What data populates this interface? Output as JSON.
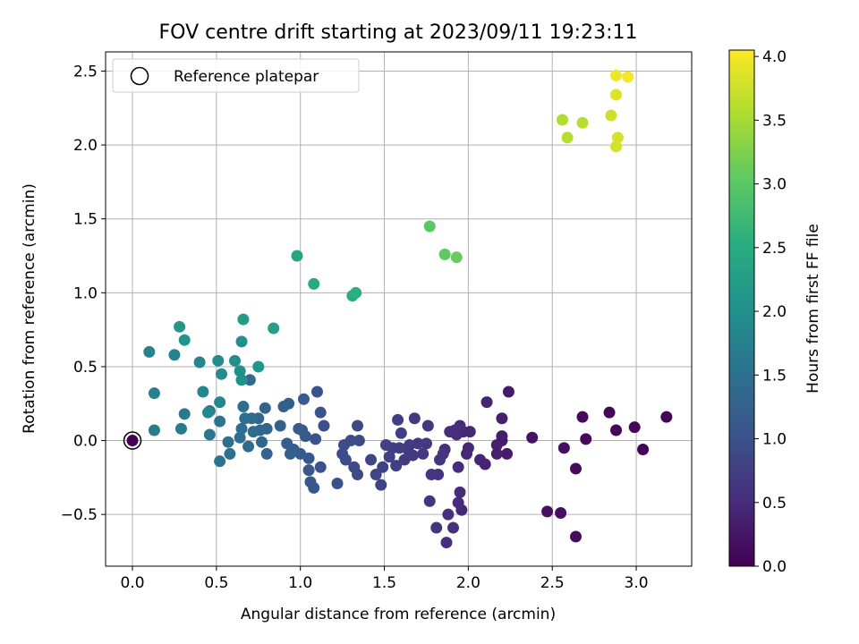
{
  "chart_data": {
    "type": "scatter",
    "title": "FOV centre drift starting at 2023/09/11 19:23:11",
    "xlabel": "Angular distance from reference (arcmin)",
    "ylabel": "Rotation from reference (arcmin)",
    "xlim": [
      -0.16,
      3.33
    ],
    "ylim": [
      -0.85,
      2.63
    ],
    "xticks": [
      0.0,
      0.5,
      1.0,
      1.5,
      2.0,
      2.5,
      3.0
    ],
    "xtick_labels": [
      "0.0",
      "0.5",
      "1.0",
      "1.5",
      "2.0",
      "2.5",
      "3.0"
    ],
    "yticks": [
      -0.5,
      0.0,
      0.5,
      1.0,
      1.5,
      2.0,
      2.5
    ],
    "ytick_labels": [
      "−0.5",
      "0.0",
      "0.5",
      "1.0",
      "1.5",
      "2.0",
      "2.5"
    ],
    "grid": true,
    "legend": {
      "position": "top-left",
      "label": "Reference platepar"
    },
    "reference_point": {
      "x": 0.0,
      "y": 0.0
    },
    "colorbar": {
      "label": "Hours from first FF file",
      "colormap": "viridis",
      "range": [
        0.0,
        4.05
      ],
      "ticks": [
        0.0,
        0.5,
        1.0,
        1.5,
        2.0,
        2.5,
        3.0,
        3.5,
        4.0
      ],
      "tick_labels": [
        "0.0",
        "0.5",
        "1.0",
        "1.5",
        "2.0",
        "2.5",
        "3.0",
        "3.5",
        "4.0"
      ],
      "position": "right"
    },
    "points": [
      {
        "x": 0.0,
        "y": 0.0,
        "c": 0.0
      },
      {
        "x": 3.18,
        "y": 0.16,
        "c": 0.05
      },
      {
        "x": 3.04,
        "y": -0.06,
        "c": 0.05
      },
      {
        "x": 2.99,
        "y": 0.09,
        "c": 0.07
      },
      {
        "x": 2.88,
        "y": 0.07,
        "c": 0.08
      },
      {
        "x": 2.84,
        "y": 0.19,
        "c": 0.08
      },
      {
        "x": 2.7,
        "y": 0.01,
        "c": 0.1
      },
      {
        "x": 2.68,
        "y": 0.16,
        "c": 0.1
      },
      {
        "x": 2.64,
        "y": -0.19,
        "c": 0.12
      },
      {
        "x": 2.64,
        "y": -0.65,
        "c": 0.12
      },
      {
        "x": 2.57,
        "y": -0.05,
        "c": 0.15
      },
      {
        "x": 2.55,
        "y": -0.49,
        "c": 0.15
      },
      {
        "x": 2.47,
        "y": -0.48,
        "c": 0.17
      },
      {
        "x": 2.38,
        "y": 0.02,
        "c": 0.2
      },
      {
        "x": 2.24,
        "y": 0.33,
        "c": 0.3
      },
      {
        "x": 2.23,
        "y": -0.09,
        "c": 0.3
      },
      {
        "x": 2.2,
        "y": 0.03,
        "c": 0.32
      },
      {
        "x": 2.2,
        "y": 0.0,
        "c": 0.32
      },
      {
        "x": 2.2,
        "y": 0.15,
        "c": 0.35
      },
      {
        "x": 2.17,
        "y": -0.09,
        "c": 0.35
      },
      {
        "x": 2.17,
        "y": -0.03,
        "c": 0.35
      },
      {
        "x": 2.11,
        "y": 0.26,
        "c": 0.4
      },
      {
        "x": 2.1,
        "y": -0.16,
        "c": 0.4
      },
      {
        "x": 2.07,
        "y": -0.13,
        "c": 0.4
      },
      {
        "x": 2.01,
        "y": 0.06,
        "c": 0.45
      },
      {
        "x": 2.0,
        "y": -0.05,
        "c": 0.45
      },
      {
        "x": 1.99,
        "y": -0.09,
        "c": 0.45
      },
      {
        "x": 1.97,
        "y": 0.06,
        "c": 0.45
      },
      {
        "x": 1.96,
        "y": -0.47,
        "c": 0.45
      },
      {
        "x": 1.95,
        "y": 0.1,
        "c": 0.5
      },
      {
        "x": 1.95,
        "y": -0.35,
        "c": 0.5
      },
      {
        "x": 1.94,
        "y": -0.42,
        "c": 0.5
      },
      {
        "x": 1.94,
        "y": -0.18,
        "c": 0.5
      },
      {
        "x": 1.93,
        "y": 0.04,
        "c": 0.5
      },
      {
        "x": 1.92,
        "y": 0.07,
        "c": 0.55
      },
      {
        "x": 1.91,
        "y": -0.59,
        "c": 0.55
      },
      {
        "x": 1.89,
        "y": 0.06,
        "c": 0.55
      },
      {
        "x": 1.88,
        "y": -0.5,
        "c": 0.55
      },
      {
        "x": 1.87,
        "y": -0.69,
        "c": 0.55
      },
      {
        "x": 1.86,
        "y": -0.06,
        "c": 0.55
      },
      {
        "x": 1.85,
        "y": -0.09,
        "c": 0.6
      },
      {
        "x": 1.83,
        "y": -0.13,
        "c": 0.6
      },
      {
        "x": 1.82,
        "y": -0.23,
        "c": 0.6
      },
      {
        "x": 1.81,
        "y": -0.59,
        "c": 0.6
      },
      {
        "x": 1.78,
        "y": -0.23,
        "c": 0.6
      },
      {
        "x": 1.77,
        "y": -0.41,
        "c": 0.6
      },
      {
        "x": 1.76,
        "y": 0.1,
        "c": 0.65
      },
      {
        "x": 1.75,
        "y": -0.02,
        "c": 0.65
      },
      {
        "x": 1.73,
        "y": -0.09,
        "c": 0.65
      },
      {
        "x": 1.7,
        "y": -0.02,
        "c": 0.65
      },
      {
        "x": 1.68,
        "y": 0.15,
        "c": 0.65
      },
      {
        "x": 1.67,
        "y": -0.1,
        "c": 0.7
      },
      {
        "x": 1.65,
        "y": -0.03,
        "c": 0.7
      },
      {
        "x": 1.64,
        "y": -0.06,
        "c": 0.7
      },
      {
        "x": 1.62,
        "y": -0.13,
        "c": 0.7
      },
      {
        "x": 1.6,
        "y": 0.05,
        "c": 0.75
      },
      {
        "x": 1.59,
        "y": -0.05,
        "c": 0.75
      },
      {
        "x": 1.58,
        "y": 0.14,
        "c": 0.75
      },
      {
        "x": 1.57,
        "y": -0.17,
        "c": 0.75
      },
      {
        "x": 1.55,
        "y": -0.05,
        "c": 0.75
      },
      {
        "x": 1.53,
        "y": -0.11,
        "c": 0.8
      },
      {
        "x": 1.51,
        "y": -0.03,
        "c": 0.8
      },
      {
        "x": 1.49,
        "y": -0.18,
        "c": 0.8
      },
      {
        "x": 1.48,
        "y": -0.3,
        "c": 0.8
      },
      {
        "x": 1.45,
        "y": -0.23,
        "c": 0.85
      },
      {
        "x": 1.42,
        "y": -0.13,
        "c": 0.85
      },
      {
        "x": 1.35,
        "y": 0.0,
        "c": 0.9
      },
      {
        "x": 1.34,
        "y": -0.23,
        "c": 0.9
      },
      {
        "x": 1.34,
        "y": 0.1,
        "c": 0.9
      },
      {
        "x": 1.32,
        "y": -0.18,
        "c": 0.9
      },
      {
        "x": 1.3,
        "y": 0.0,
        "c": 0.95
      },
      {
        "x": 1.27,
        "y": -0.13,
        "c": 0.95
      },
      {
        "x": 1.26,
        "y": -0.03,
        "c": 0.95
      },
      {
        "x": 1.25,
        "y": -0.09,
        "c": 0.95
      },
      {
        "x": 1.22,
        "y": -0.29,
        "c": 1.0
      },
      {
        "x": 1.14,
        "y": 0.1,
        "c": 1.0
      },
      {
        "x": 1.12,
        "y": 0.19,
        "c": 1.05
      },
      {
        "x": 1.12,
        "y": -0.18,
        "c": 1.05
      },
      {
        "x": 1.1,
        "y": 0.33,
        "c": 1.05
      },
      {
        "x": 1.09,
        "y": 0.01,
        "c": 1.05
      },
      {
        "x": 1.08,
        "y": -0.32,
        "c": 1.1
      },
      {
        "x": 1.06,
        "y": -0.28,
        "c": 1.1
      },
      {
        "x": 1.05,
        "y": -0.2,
        "c": 1.1
      },
      {
        "x": 1.05,
        "y": -0.12,
        "c": 1.1
      },
      {
        "x": 1.03,
        "y": 0.03,
        "c": 1.1
      },
      {
        "x": 1.02,
        "y": 0.28,
        "c": 1.15
      },
      {
        "x": 1.01,
        "y": 0.07,
        "c": 1.15
      },
      {
        "x": 1.0,
        "y": -0.09,
        "c": 1.15
      },
      {
        "x": 0.99,
        "y": 0.08,
        "c": 1.15
      },
      {
        "x": 0.96,
        "y": -0.06,
        "c": 1.2
      },
      {
        "x": 0.94,
        "y": -0.09,
        "c": 1.2
      },
      {
        "x": 0.93,
        "y": 0.25,
        "c": 1.2
      },
      {
        "x": 0.92,
        "y": -0.02,
        "c": 1.2
      },
      {
        "x": 0.9,
        "y": 0.23,
        "c": 1.25
      },
      {
        "x": 0.88,
        "y": 0.1,
        "c": 1.25
      },
      {
        "x": 0.8,
        "y": 0.08,
        "c": 1.3
      },
      {
        "x": 0.8,
        "y": -0.09,
        "c": 1.3
      },
      {
        "x": 0.79,
        "y": 0.22,
        "c": 1.3
      },
      {
        "x": 0.77,
        "y": -0.01,
        "c": 1.35
      },
      {
        "x": 0.76,
        "y": 0.07,
        "c": 1.35
      },
      {
        "x": 0.75,
        "y": 0.15,
        "c": 1.35
      },
      {
        "x": 0.72,
        "y": 0.06,
        "c": 1.4
      },
      {
        "x": 0.71,
        "y": 0.15,
        "c": 1.4
      },
      {
        "x": 0.7,
        "y": 0.41,
        "c": 1.4
      },
      {
        "x": 0.69,
        "y": -0.04,
        "c": 1.4
      },
      {
        "x": 0.67,
        "y": 0.15,
        "c": 1.45
      },
      {
        "x": 0.66,
        "y": 0.23,
        "c": 1.45
      },
      {
        "x": 0.65,
        "y": 0.08,
        "c": 1.45
      },
      {
        "x": 0.64,
        "y": 0.02,
        "c": 1.45
      },
      {
        "x": 0.57,
        "y": -0.01,
        "c": 1.5
      },
      {
        "x": 0.58,
        "y": -0.09,
        "c": 1.5
      },
      {
        "x": 0.52,
        "y": 0.13,
        "c": 1.55
      },
      {
        "x": 0.52,
        "y": -0.14,
        "c": 1.55
      },
      {
        "x": 0.46,
        "y": 0.2,
        "c": 1.6
      },
      {
        "x": 0.46,
        "y": 0.04,
        "c": 1.6
      },
      {
        "x": 0.31,
        "y": 0.18,
        "c": 1.65
      },
      {
        "x": 0.29,
        "y": 0.08,
        "c": 1.65
      },
      {
        "x": 0.13,
        "y": 0.07,
        "c": 1.7
      },
      {
        "x": 0.13,
        "y": 0.32,
        "c": 1.75
      },
      {
        "x": 0.1,
        "y": 0.6,
        "c": 1.8
      },
      {
        "x": 0.25,
        "y": 0.58,
        "c": 1.8
      },
      {
        "x": 0.4,
        "y": 0.53,
        "c": 1.85
      },
      {
        "x": 0.42,
        "y": 0.33,
        "c": 1.85
      },
      {
        "x": 0.45,
        "y": 0.19,
        "c": 1.9
      },
      {
        "x": 0.52,
        "y": 0.26,
        "c": 1.9
      },
      {
        "x": 0.51,
        "y": 0.54,
        "c": 1.95
      },
      {
        "x": 0.53,
        "y": 0.45,
        "c": 1.95
      },
      {
        "x": 0.61,
        "y": 0.54,
        "c": 2.0
      },
      {
        "x": 0.64,
        "y": 0.47,
        "c": 2.0
      },
      {
        "x": 0.65,
        "y": 0.41,
        "c": 2.05
      },
      {
        "x": 0.65,
        "y": 0.67,
        "c": 2.05
      },
      {
        "x": 0.75,
        "y": 0.5,
        "c": 2.1
      },
      {
        "x": 0.31,
        "y": 0.68,
        "c": 2.1
      },
      {
        "x": 0.28,
        "y": 0.77,
        "c": 2.15
      },
      {
        "x": 0.66,
        "y": 0.82,
        "c": 2.2
      },
      {
        "x": 0.84,
        "y": 0.76,
        "c": 2.25
      },
      {
        "x": 0.98,
        "y": 1.25,
        "c": 2.4
      },
      {
        "x": 1.08,
        "y": 1.06,
        "c": 2.45
      },
      {
        "x": 1.31,
        "y": 0.98,
        "c": 2.5
      },
      {
        "x": 1.33,
        "y": 1.0,
        "c": 2.55
      },
      {
        "x": 1.77,
        "y": 1.45,
        "c": 3.0
      },
      {
        "x": 1.86,
        "y": 1.26,
        "c": 3.05
      },
      {
        "x": 1.93,
        "y": 1.24,
        "c": 3.1
      },
      {
        "x": 2.56,
        "y": 2.17,
        "c": 3.55
      },
      {
        "x": 2.59,
        "y": 2.05,
        "c": 3.6
      },
      {
        "x": 2.68,
        "y": 2.15,
        "c": 3.6
      },
      {
        "x": 2.85,
        "y": 2.2,
        "c": 3.75
      },
      {
        "x": 2.88,
        "y": 1.99,
        "c": 3.8
      },
      {
        "x": 2.89,
        "y": 2.05,
        "c": 3.8
      },
      {
        "x": 2.88,
        "y": 2.34,
        "c": 3.85
      },
      {
        "x": 2.88,
        "y": 2.47,
        "c": 3.95
      },
      {
        "x": 2.95,
        "y": 2.46,
        "c": 4.0
      }
    ]
  }
}
